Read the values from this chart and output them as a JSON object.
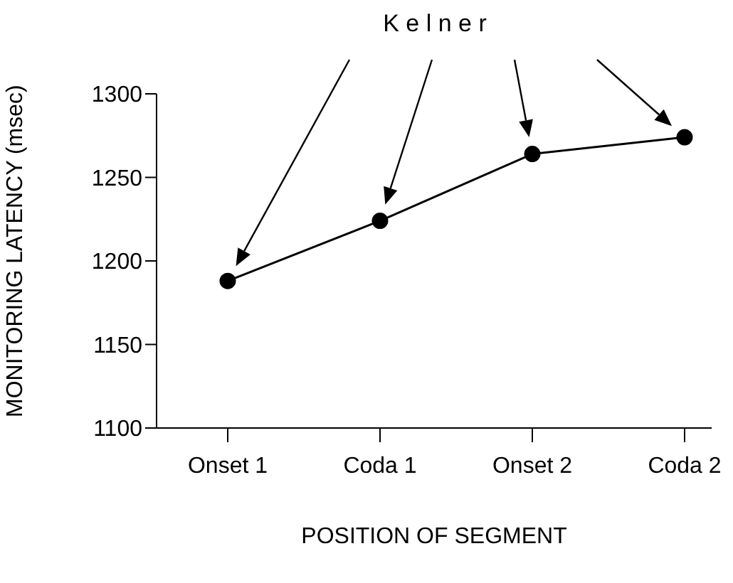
{
  "chart_data": {
    "type": "line",
    "xlabel": "POSITION OF SEGMENT",
    "ylabel": "MONITORING LATENCY (msec)",
    "annotations": [
      "K e l n e r"
    ],
    "categories": [
      "Onset 1",
      "Coda 1",
      "Onset 2",
      "Coda 2"
    ],
    "series": [
      {
        "color": "#000000",
        "values": [
          1188,
          1224,
          1264,
          1274
        ]
      }
    ],
    "ylim": [
      1100,
      1300
    ],
    "yticks": [
      1100,
      1150,
      1200,
      1250,
      1300
    ],
    "grid": false,
    "legend": false,
    "marker": "circle",
    "line_style": "solid"
  }
}
